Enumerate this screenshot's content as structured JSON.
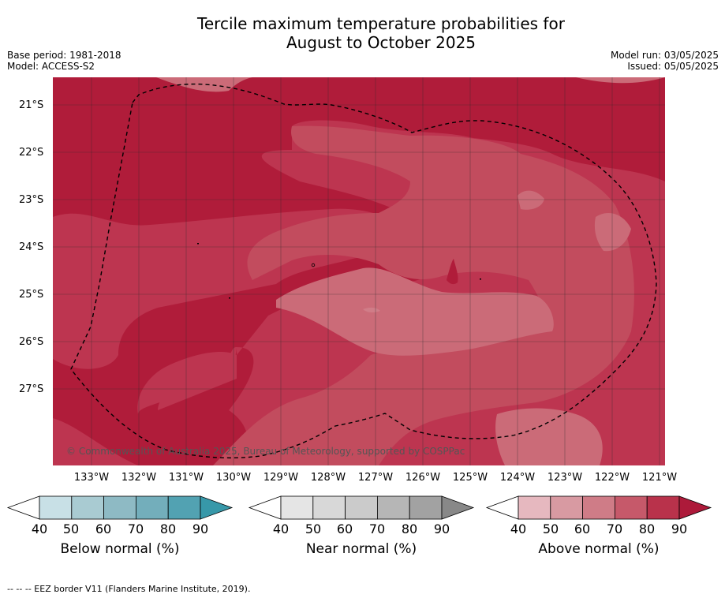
{
  "title_line1": "Tercile maximum temperature probabilities for",
  "title_line2": "August to October 2025",
  "base_period": "Base period: 1981-2018",
  "model": "Model: ACCESS-S2",
  "model_run": "Model run: 03/05/2025",
  "issued": "Issued: 05/05/2025",
  "copyright": "© Commonwealth of Australia 2025, Bureau of Meteorology, supported by COSPPac",
  "footnote": "-- -- -- EEZ border V11 (Flanders Marine Institute, 2019).",
  "lat_labels": [
    "21°S",
    "22°S",
    "23°S",
    "24°S",
    "25°S",
    "26°S",
    "27°S"
  ],
  "lon_labels": [
    "133°W",
    "132°W",
    "131°W",
    "130°W",
    "129°W",
    "128°W",
    "127°W",
    "126°W",
    "125°W",
    "124°W",
    "123°W",
    "122°W",
    "121°W"
  ],
  "legends": [
    {
      "label": "Below normal (%)",
      "ticks": [
        "40",
        "50",
        "60",
        "70",
        "80",
        "90"
      ],
      "colors": [
        "#c8e0e6",
        "#a9cbd2",
        "#8ebac4",
        "#73aebb",
        "#52a2b2",
        "#3798a9"
      ]
    },
    {
      "label": "Near normal (%)",
      "ticks": [
        "40",
        "50",
        "60",
        "70",
        "80",
        "90"
      ],
      "colors": [
        "#e5e5e5",
        "#d8d8d8",
        "#cbcbcb",
        "#b6b6b6",
        "#a2a2a2",
        "#888888"
      ]
    },
    {
      "label": "Above normal (%)",
      "ticks": [
        "40",
        "50",
        "60",
        "70",
        "80",
        "90"
      ],
      "colors": [
        "#e6b8bf",
        "#d89aa2",
        "#cf7c87",
        "#c6596a",
        "#b9324b",
        "#ad1a3a"
      ]
    }
  ],
  "map_colors": {
    "above_90": "#b01c3a",
    "above_80": "#bd3550",
    "above_70": "#c24c5e",
    "above_60": "#cb6b78"
  }
}
